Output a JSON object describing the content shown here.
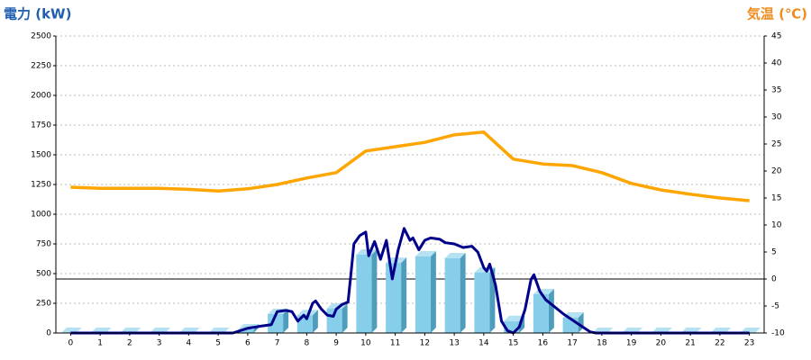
{
  "chart_data": {
    "type": "combo",
    "y_label": "電力 (kW)",
    "y2_label": "気温 (℃)",
    "categories": [
      "0",
      "1",
      "2",
      "3",
      "4",
      "5",
      "6",
      "7",
      "8",
      "9",
      "10",
      "11",
      "12",
      "13",
      "14",
      "15",
      "16",
      "17",
      "18",
      "19",
      "20",
      "21",
      "22",
      "23"
    ],
    "ylim": [
      0,
      2500
    ],
    "yticks": [
      0,
      250,
      500,
      750,
      1000,
      1250,
      1500,
      1750,
      2000,
      2250,
      2500
    ],
    "y2lim": [
      -10,
      45
    ],
    "y2ticks": [
      -10,
      -5,
      0,
      5,
      10,
      15,
      20,
      25,
      30,
      35,
      40,
      45
    ],
    "grid": true,
    "reference_line": {
      "axis": "y2",
      "value": 0,
      "color": "#000000"
    },
    "series": [
      {
        "type": "bar",
        "color": "#87ceeb",
        "values": [
          0,
          0,
          0,
          0,
          0,
          0,
          30,
          159,
          150,
          205,
          659,
          590,
          644,
          629,
          508,
          100,
          326,
          129,
          0,
          0,
          0,
          0,
          0,
          0
        ]
      },
      {
        "type": "line",
        "color": "#00008b",
        "x": [
          0,
          5.5,
          6,
          6.5,
          6.8,
          7,
          7.3,
          7.5,
          7.7,
          7.9,
          8,
          8.2,
          8.3,
          8.5,
          8.7,
          8.9,
          9,
          9.2,
          9.4,
          9.5,
          9.6,
          9.8,
          10,
          10.1,
          10.3,
          10.5,
          10.7,
          10.9,
          11.1,
          11.3,
          11.5,
          11.6,
          11.8,
          12,
          12.2,
          12.5,
          12.7,
          13,
          13.3,
          13.6,
          13.8,
          14,
          14.1,
          14.2,
          14.4,
          14.6,
          14.8,
          15,
          15.2,
          15.4,
          15.6,
          15.7,
          15.9,
          16.1,
          16.4,
          16.7,
          17,
          17.3,
          17.6,
          17.8,
          23
        ],
        "values": [
          0,
          0,
          40,
          60,
          70,
          180,
          190,
          180,
          100,
          150,
          120,
          250,
          270,
          200,
          150,
          140,
          200,
          240,
          260,
          500,
          750,
          820,
          850,
          650,
          770,
          620,
          780,
          455,
          700,
          880,
          780,
          800,
          700,
          780,
          800,
          790,
          760,
          750,
          720,
          730,
          680,
          550,
          520,
          580,
          400,
          100,
          20,
          0,
          50,
          200,
          450,
          490,
          350,
          280,
          220,
          160,
          110,
          60,
          10,
          0,
          0
        ]
      },
      {
        "type": "line",
        "axis": "y2",
        "color": "#ffa500",
        "values": [
          17,
          16.8,
          16.8,
          16.8,
          16.6,
          16.3,
          16.7,
          17.5,
          18.7,
          19.7,
          23.7,
          24.5,
          25.3,
          26.7,
          27.2,
          22.2,
          21.3,
          21,
          19.7,
          17.7,
          16.5,
          15.7,
          15,
          14.5
        ]
      }
    ]
  }
}
